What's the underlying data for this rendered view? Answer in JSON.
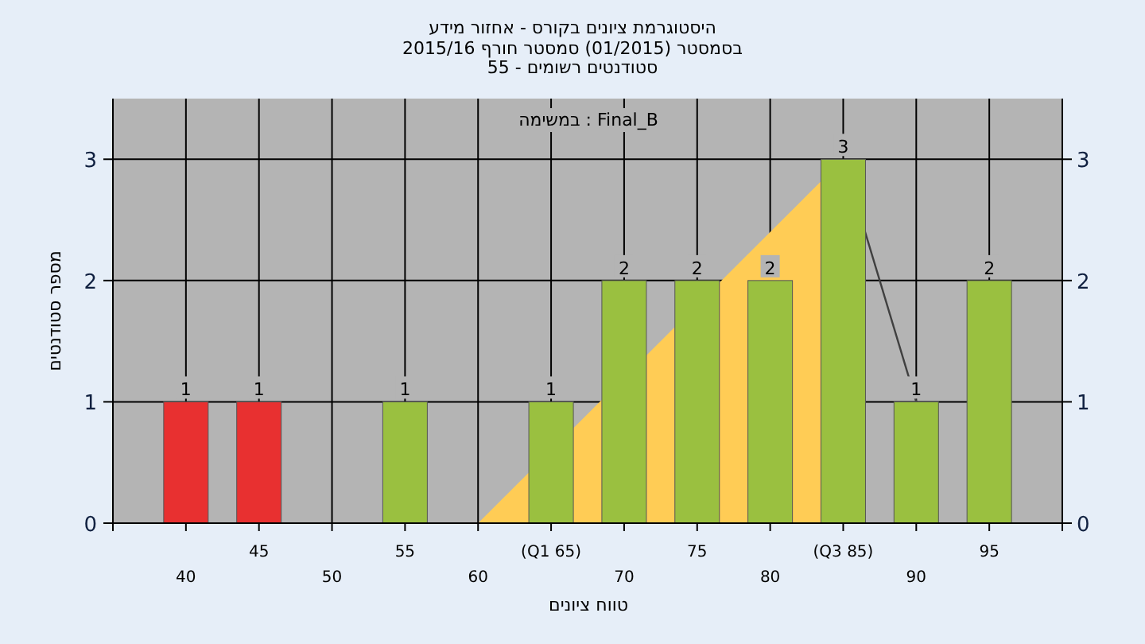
{
  "chart_data": {
    "type": "bar",
    "title": "היסטוגרמת ציונים בקורס - אחזור מידע",
    "subtitle": "בסמסטר  (01/2015)  סמסטר חורף 2015/16\nסטודנטים רשומים - 55",
    "annotations": [
      "במשימה : Final_B"
    ],
    "xlabel": "טווח ציונים",
    "ylabel": "מספר סטודנטים",
    "categories": [
      "40",
      "45",
      "50",
      "55",
      "60",
      "(Q1 65)",
      "70",
      "75",
      "80",
      "(Q3 85)",
      "90",
      "95"
    ],
    "series": [
      {
        "type": "area",
        "color": "#ffcc55",
        "values": [
          null,
          null,
          null,
          null,
          0,
          null,
          null,
          null,
          null,
          3,
          null,
          null
        ]
      },
      {
        "type": "line",
        "color": "#404040",
        "values": [
          null,
          null,
          null,
          null,
          null,
          null,
          null,
          null,
          null,
          3,
          1,
          null
        ]
      },
      {
        "type": "bar",
        "colors": [
          "#e83030",
          "#e83030",
          "#9ac040",
          "#9ac040",
          "#9ac040",
          "#9ac040",
          "#9ac040",
          "#9ac040",
          "#9ac040",
          "#9ac040",
          "#9ac040",
          "#9ac040"
        ],
        "values": [
          1,
          1,
          0,
          1,
          0,
          1,
          2,
          2,
          2,
          3,
          1,
          2
        ],
        "value_labels": [
          "1",
          "1",
          null,
          "1",
          null,
          "1",
          "2",
          "2",
          "2",
          "3",
          "1",
          "2"
        ]
      }
    ],
    "ylim": [
      0,
      3.5
    ],
    "yticks": [
      0,
      1,
      2,
      3
    ],
    "y2lim": [
      0,
      3.5
    ],
    "y2ticks": [
      0,
      1,
      2,
      3
    ],
    "grid": true
  }
}
